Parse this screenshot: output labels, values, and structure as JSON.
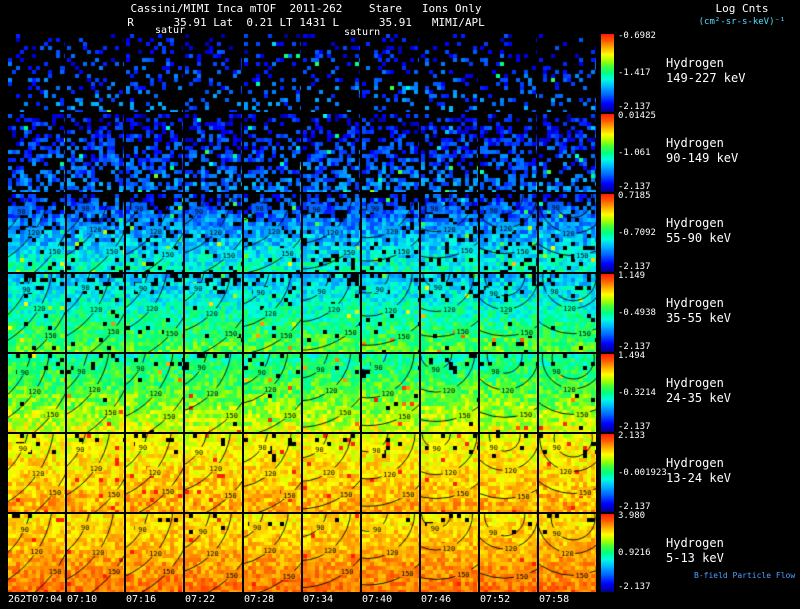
{
  "header": {
    "title_line1": "Cassini/MIMI Inca mTOF  2011-262    Stare   Ions Only",
    "title_line2": "R      35.91 Lat  0.21 LT 1431 L      35.91   MIMI/APL"
  },
  "colorbar": {
    "title": "Log Cnts",
    "units": "(cm²-sr-s-keV)⁻¹"
  },
  "annotations": {
    "saturn_partial": "satur",
    "saturn": "saturn"
  },
  "footer": {
    "note": "B-field Particle Flow"
  },
  "chart_data": {
    "type": "heatmap",
    "title": "Cassini/MIMI Inca mTOF 2011-262 Stare Ions Only",
    "subtitle": "R 35.91 Lat 0.21 LT 1431 L 35.91 MIMI/APL",
    "colorbar_title": "Log Cnts (cm²-sr-s-keV)⁻¹",
    "description": "Grid of Cassini MIMI/INCA ion camera images: 7 hydrogen energy bands (rows, highest energy at top) by 10 six-minute time steps (columns). Color encodes log counts per row-specific scale; black contour lines are magnetic pitch angle in degrees.",
    "time_labels": [
      "262T07:04",
      "07:10",
      "07:16",
      "07:22",
      "07:28",
      "07:34",
      "07:40",
      "07:46",
      "07:52",
      "07:58"
    ],
    "contour_levels_deg": [
      90,
      120,
      150
    ],
    "palette_stops": [
      [
        0.0,
        "#00008c"
      ],
      [
        0.1,
        "#0000ff"
      ],
      [
        0.22,
        "#0066ff"
      ],
      [
        0.32,
        "#00b4ff"
      ],
      [
        0.42,
        "#00ffe0"
      ],
      [
        0.5,
        "#00ff80"
      ],
      [
        0.58,
        "#40ff40"
      ],
      [
        0.66,
        "#a8ff00"
      ],
      [
        0.74,
        "#ffff00"
      ],
      [
        0.82,
        "#ffb400"
      ],
      [
        0.9,
        "#ff6a00"
      ],
      [
        1.0,
        "#ff1e00"
      ]
    ],
    "rows": [
      {
        "species": "Hydrogen",
        "energy": "149-227 keV",
        "cbar_labels": [
          "-0.6982",
          "-1.417",
          "-2.137"
        ],
        "render": {
          "sparsity": 0.8,
          "sparsity_top": 0.05,
          "v0": 0.1,
          "v1": 0.24,
          "jitter": 0.1,
          "hot": 0.03,
          "contours": false
        }
      },
      {
        "species": "Hydrogen",
        "energy": "90-149 keV",
        "cbar_labels": [
          "0.01425",
          "-1.061",
          "-2.137"
        ],
        "render": {
          "sparsity": 0.5,
          "sparsity_top": 0.15,
          "v0": 0.1,
          "v1": 0.26,
          "jitter": 0.1,
          "hot": 0.03,
          "contours": false
        }
      },
      {
        "species": "Hydrogen",
        "energy": "55-90 keV",
        "cbar_labels": [
          "0.7185",
          "-0.7092",
          "-2.137"
        ],
        "render": {
          "sparsity": 0.1,
          "sparsity_top": 0.45,
          "v0": 0.16,
          "v1": 0.46,
          "jitter": 0.11,
          "hot": 0.02,
          "contours": true
        }
      },
      {
        "species": "Hydrogen",
        "energy": "35-55 keV",
        "cbar_labels": [
          "1.149",
          "-0.4938",
          "-2.137"
        ],
        "render": {
          "sparsity": 0.03,
          "sparsity_top": 0.22,
          "v0": 0.34,
          "v1": 0.6,
          "jitter": 0.1,
          "hot": 0.01,
          "contours": true
        }
      },
      {
        "species": "Hydrogen",
        "energy": "24-35 keV",
        "cbar_labels": [
          "1.494",
          "-0.3214",
          "-2.137"
        ],
        "render": {
          "sparsity": 0.01,
          "sparsity_top": 0.1,
          "v0": 0.48,
          "v1": 0.72,
          "jitter": 0.1,
          "hot": 0.01,
          "contours": true
        }
      },
      {
        "species": "Hydrogen",
        "energy": "13-24 keV",
        "cbar_labels": [
          "2.133",
          "-0.001923",
          "-2.137"
        ],
        "render": {
          "sparsity": 0.0,
          "sparsity_top": 0.1,
          "v0": 0.72,
          "v1": 0.84,
          "jitter": 0.08,
          "hot": 0.02,
          "contours": true
        }
      },
      {
        "species": "Hydrogen",
        "energy": "5-13 keV",
        "cbar_labels": [
          "3.980",
          "0.9216",
          "-2.137"
        ],
        "render": {
          "sparsity": 0.0,
          "sparsity_top": 0.05,
          "v0": 0.76,
          "v1": 0.9,
          "jitter": 0.07,
          "hot": 0.01,
          "contours": true
        }
      }
    ]
  }
}
